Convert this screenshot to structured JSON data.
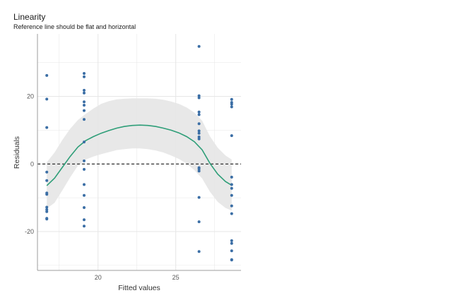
{
  "chart_data": {
    "type": "scatter",
    "title": "Linearity",
    "subtitle": "Reference line should be flat and horizontal",
    "xlabel": "Fitted values",
    "ylabel": "Residuals",
    "xlim": [
      16.1,
      29.2
    ],
    "ylim": [
      -31.5,
      38.5
    ],
    "x_ticks": [
      20,
      25
    ],
    "y_ticks": [
      -20,
      0,
      20
    ],
    "grid": true,
    "reference_line": {
      "y": 0,
      "style": "dashed",
      "color": "#000000"
    },
    "colors": {
      "points": "#3b6ea5",
      "smooth": "#2e9e78",
      "band": "#e5e5e5",
      "grid": "#e6e6e6",
      "axis": "#9e9e9e"
    },
    "points": [
      {
        "x": 16.7,
        "y": 26.2
      },
      {
        "x": 16.7,
        "y": 19.2
      },
      {
        "x": 16.7,
        "y": 10.8
      },
      {
        "x": 16.7,
        "y": -2.4
      },
      {
        "x": 16.7,
        "y": -4.9
      },
      {
        "x": 16.7,
        "y": -8.6
      },
      {
        "x": 16.7,
        "y": -9.0
      },
      {
        "x": 16.7,
        "y": -12.8
      },
      {
        "x": 16.7,
        "y": -13.5
      },
      {
        "x": 16.7,
        "y": -14.1
      },
      {
        "x": 16.7,
        "y": -16.1
      },
      {
        "x": 16.7,
        "y": -16.3
      },
      {
        "x": 19.1,
        "y": 26.8
      },
      {
        "x": 19.1,
        "y": 25.8
      },
      {
        "x": 19.1,
        "y": 21.8
      },
      {
        "x": 19.1,
        "y": 21.0
      },
      {
        "x": 19.1,
        "y": 18.4
      },
      {
        "x": 19.1,
        "y": 17.4
      },
      {
        "x": 19.1,
        "y": 15.8
      },
      {
        "x": 19.1,
        "y": 13.2
      },
      {
        "x": 19.1,
        "y": 6.5
      },
      {
        "x": 19.1,
        "y": 0.9
      },
      {
        "x": 19.1,
        "y": -1.6
      },
      {
        "x": 19.1,
        "y": -6.1
      },
      {
        "x": 19.1,
        "y": -9.3
      },
      {
        "x": 19.1,
        "y": -12.9
      },
      {
        "x": 19.1,
        "y": -16.5
      },
      {
        "x": 19.1,
        "y": -18.4
      },
      {
        "x": 26.5,
        "y": 34.8
      },
      {
        "x": 26.5,
        "y": 20.2
      },
      {
        "x": 26.5,
        "y": 19.6
      },
      {
        "x": 26.5,
        "y": 15.4
      },
      {
        "x": 26.5,
        "y": 14.6
      },
      {
        "x": 26.5,
        "y": 11.9
      },
      {
        "x": 26.5,
        "y": 9.8
      },
      {
        "x": 26.5,
        "y": 9.1
      },
      {
        "x": 26.5,
        "y": 8.0
      },
      {
        "x": 26.5,
        "y": 7.4
      },
      {
        "x": 26.5,
        "y": -1.1
      },
      {
        "x": 26.5,
        "y": -1.5
      },
      {
        "x": 26.5,
        "y": -2.1
      },
      {
        "x": 26.5,
        "y": -9.9
      },
      {
        "x": 26.5,
        "y": -17.1
      },
      {
        "x": 26.5,
        "y": -25.9
      },
      {
        "x": 28.6,
        "y": 19.1
      },
      {
        "x": 28.6,
        "y": 18.2
      },
      {
        "x": 28.6,
        "y": 17.7
      },
      {
        "x": 28.6,
        "y": 16.9
      },
      {
        "x": 28.6,
        "y": 8.4
      },
      {
        "x": 28.6,
        "y": -3.9
      },
      {
        "x": 28.6,
        "y": -6.1
      },
      {
        "x": 28.6,
        "y": -7.2
      },
      {
        "x": 28.6,
        "y": -9.3
      },
      {
        "x": 28.6,
        "y": -12.4
      },
      {
        "x": 28.6,
        "y": -14.7
      },
      {
        "x": 28.6,
        "y": -22.7
      },
      {
        "x": 28.6,
        "y": -23.5
      },
      {
        "x": 28.6,
        "y": -25.7
      },
      {
        "x": 28.6,
        "y": -28.3
      },
      {
        "x": 28.6,
        "y": -28.4
      }
    ],
    "smooth_line": {
      "x": [
        16.7,
        17.2,
        17.7,
        18.2,
        18.7,
        19.2,
        19.7,
        20.2,
        20.7,
        21.2,
        21.7,
        22.2,
        22.7,
        23.2,
        23.7,
        24.2,
        24.7,
        25.2,
        25.7,
        26.2,
        26.7,
        27.2,
        27.7,
        28.2,
        28.6
      ],
      "y": [
        -6.4,
        -4.2,
        -1.0,
        2.2,
        5.0,
        6.9,
        8.1,
        9.1,
        9.9,
        10.6,
        11.1,
        11.4,
        11.5,
        11.4,
        11.1,
        10.6,
        10.0,
        9.2,
        8.1,
        6.6,
        4.2,
        0.2,
        -3.0,
        -5.2,
        -6.3
      ],
      "lower": [
        -13.2,
        -11.5,
        -7.8,
        -4.0,
        -0.5,
        1.3,
        2.2,
        2.9,
        3.5,
        4.1,
        4.4,
        4.6,
        4.6,
        4.4,
        4.0,
        3.4,
        2.5,
        1.5,
        0.1,
        -1.8,
        -4.3,
        -8.2,
        -11.2,
        -13.0,
        -13.8
      ],
      "upper": [
        0.5,
        3.4,
        7.1,
        10.4,
        13.0,
        14.8,
        16.4,
        17.8,
        18.6,
        19.1,
        19.3,
        19.4,
        19.4,
        19.4,
        19.3,
        19.0,
        18.5,
        17.8,
        16.7,
        15.2,
        12.8,
        8.2,
        4.8,
        2.5,
        1.3
      ]
    }
  }
}
